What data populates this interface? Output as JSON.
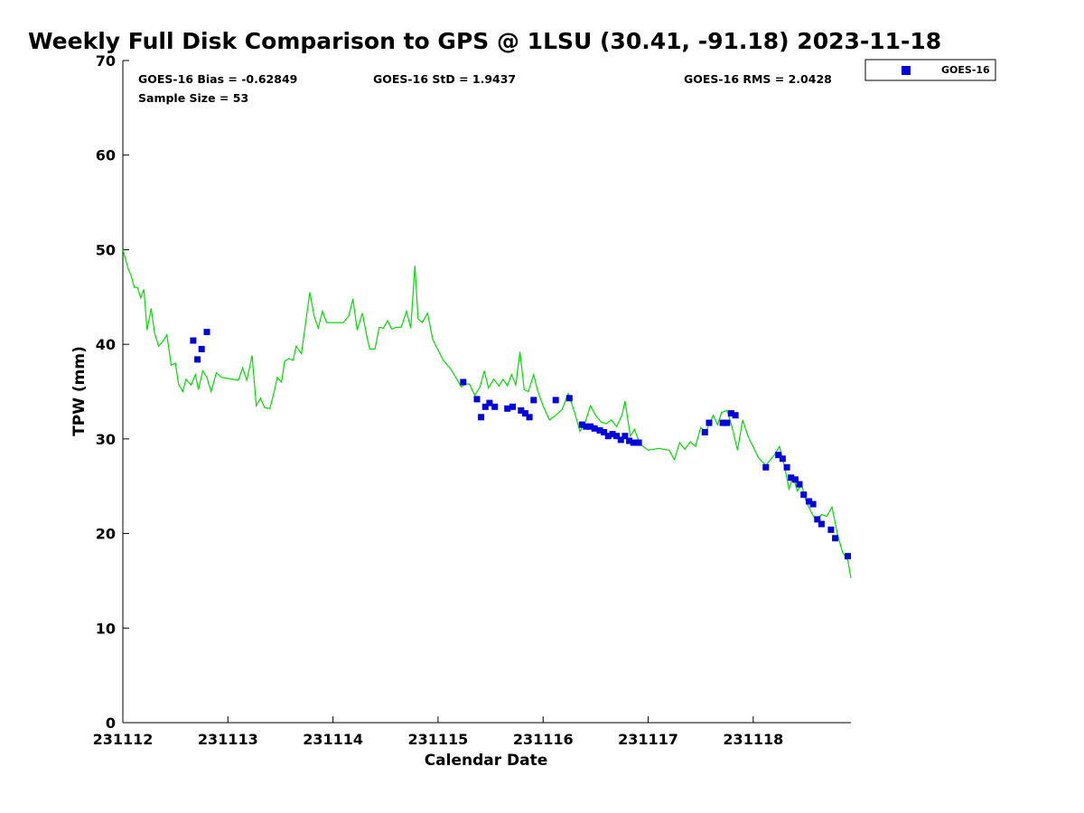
{
  "chart_data": {
    "type": "scatter",
    "title": "Weekly Full Disk Comparison to GPS @ 1LSU (30.41, -91.18) 2023-11-18",
    "xlabel": "Calendar Date",
    "ylabel": "TPW (mm)",
    "xlim": [
      231112,
      231118.93
    ],
    "ylim": [
      0,
      70
    ],
    "x_ticks": [
      {
        "value": 231112,
        "label": "231112"
      },
      {
        "value": 231113,
        "label": "231113"
      },
      {
        "value": 231114,
        "label": "231114"
      },
      {
        "value": 231115,
        "label": "231115"
      },
      {
        "value": 231116,
        "label": "231116"
      },
      {
        "value": 231117,
        "label": "231117"
      },
      {
        "value": 231118,
        "label": "231118"
      }
    ],
    "y_ticks": [
      {
        "value": 0,
        "label": "0"
      },
      {
        "value": 10,
        "label": "10"
      },
      {
        "value": 20,
        "label": "20"
      },
      {
        "value": 30,
        "label": "30"
      },
      {
        "value": 40,
        "label": "40"
      },
      {
        "value": 50,
        "label": "50"
      },
      {
        "value": 60,
        "label": "60"
      },
      {
        "value": 70,
        "label": "70"
      }
    ],
    "stats": {
      "bias": "GOES-16 Bias = -0.62849",
      "std": "GOES-16 StD = 1.9437",
      "rms": "GOES-16 RMS = 2.0428",
      "sample": "Sample Size = 53"
    },
    "legend_position": "top-right, outside plot",
    "grid": false,
    "series": [
      {
        "name": "GOES-16",
        "marker": "square",
        "color": "#0000dd",
        "points": [
          [
            231112.67,
            40.4
          ],
          [
            231112.71,
            38.4
          ],
          [
            231112.75,
            39.5
          ],
          [
            231112.8,
            41.3
          ],
          [
            231115.24,
            36.0
          ],
          [
            231115.37,
            34.2
          ],
          [
            231115.41,
            32.3
          ],
          [
            231115.45,
            33.4
          ],
          [
            231115.49,
            33.8
          ],
          [
            231115.54,
            33.4
          ],
          [
            231115.66,
            33.2
          ],
          [
            231115.71,
            33.4
          ],
          [
            231115.79,
            33.0
          ],
          [
            231115.83,
            32.7
          ],
          [
            231115.87,
            32.3
          ],
          [
            231115.91,
            34.1
          ],
          [
            231116.12,
            34.1
          ],
          [
            231116.25,
            34.3
          ],
          [
            231116.37,
            31.5
          ],
          [
            231116.41,
            31.3
          ],
          [
            231116.45,
            31.3
          ],
          [
            231116.49,
            31.1
          ],
          [
            231116.54,
            30.9
          ],
          [
            231116.58,
            30.7
          ],
          [
            231116.62,
            30.3
          ],
          [
            231116.66,
            30.5
          ],
          [
            231116.7,
            30.3
          ],
          [
            231116.74,
            29.9
          ],
          [
            231116.78,
            30.3
          ],
          [
            231116.82,
            29.8
          ],
          [
            231116.86,
            29.6
          ],
          [
            231116.91,
            29.6
          ],
          [
            231117.54,
            30.7
          ],
          [
            231117.58,
            31.7
          ],
          [
            231117.71,
            31.7
          ],
          [
            231117.75,
            31.7
          ],
          [
            231117.79,
            32.7
          ],
          [
            231117.83,
            32.5
          ],
          [
            231118.12,
            27.0
          ],
          [
            231118.24,
            28.3
          ],
          [
            231118.28,
            27.9
          ],
          [
            231118.32,
            27.0
          ],
          [
            231118.36,
            25.9
          ],
          [
            231118.4,
            25.7
          ],
          [
            231118.44,
            25.2
          ],
          [
            231118.48,
            24.1
          ],
          [
            231118.53,
            23.4
          ],
          [
            231118.57,
            23.1
          ],
          [
            231118.61,
            21.5
          ],
          [
            231118.65,
            21.0
          ],
          [
            231118.74,
            20.4
          ],
          [
            231118.78,
            19.5
          ],
          [
            231118.9,
            17.6
          ]
        ]
      },
      {
        "marker": "line",
        "color": "#00dd00",
        "points": [
          [
            231112.0,
            50.0
          ],
          [
            231112.05,
            48.0
          ],
          [
            231112.08,
            47.2
          ],
          [
            231112.11,
            46.0
          ],
          [
            231112.14,
            46.0
          ],
          [
            231112.17,
            44.9
          ],
          [
            231112.2,
            45.8
          ],
          [
            231112.23,
            41.5
          ],
          [
            231112.27,
            43.8
          ],
          [
            231112.3,
            41.3
          ],
          [
            231112.34,
            39.8
          ],
          [
            231112.38,
            40.3
          ],
          [
            231112.42,
            41.0
          ],
          [
            231112.46,
            37.8
          ],
          [
            231112.5,
            38.0
          ],
          [
            231112.53,
            35.8
          ],
          [
            231112.57,
            35.0
          ],
          [
            231112.6,
            36.3
          ],
          [
            231112.65,
            35.7
          ],
          [
            231112.69,
            36.8
          ],
          [
            231112.72,
            35.2
          ],
          [
            231112.76,
            37.2
          ],
          [
            231112.8,
            36.5
          ],
          [
            231112.84,
            35.0
          ],
          [
            231112.89,
            37.0
          ],
          [
            231112.94,
            36.5
          ],
          [
            231113.1,
            36.2
          ],
          [
            231113.14,
            37.5
          ],
          [
            231113.18,
            36.2
          ],
          [
            231113.23,
            38.8
          ],
          [
            231113.27,
            33.5
          ],
          [
            231113.31,
            34.3
          ],
          [
            231113.35,
            33.3
          ],
          [
            231113.4,
            33.2
          ],
          [
            231113.44,
            35.0
          ],
          [
            231113.47,
            36.5
          ],
          [
            231113.51,
            36.0
          ],
          [
            231113.54,
            38.2
          ],
          [
            231113.58,
            38.5
          ],
          [
            231113.62,
            38.3
          ],
          [
            231113.65,
            39.8
          ],
          [
            231113.7,
            39.0
          ],
          [
            231113.74,
            42.3
          ],
          [
            231113.78,
            45.5
          ],
          [
            231113.82,
            43.0
          ],
          [
            231113.86,
            41.7
          ],
          [
            231113.9,
            43.5
          ],
          [
            231113.94,
            42.3
          ],
          [
            231114.1,
            42.3
          ],
          [
            231114.15,
            43.0
          ],
          [
            231114.19,
            44.8
          ],
          [
            231114.23,
            41.5
          ],
          [
            231114.28,
            43.3
          ],
          [
            231114.32,
            41.0
          ],
          [
            231114.35,
            39.5
          ],
          [
            231114.4,
            39.5
          ],
          [
            231114.44,
            41.8
          ],
          [
            231114.48,
            41.7
          ],
          [
            231114.52,
            42.5
          ],
          [
            231114.56,
            41.6
          ],
          [
            231114.6,
            41.8
          ],
          [
            231114.65,
            41.8
          ],
          [
            231114.7,
            43.5
          ],
          [
            231114.74,
            41.7
          ],
          [
            231114.78,
            48.3
          ],
          [
            231114.81,
            42.7
          ],
          [
            231114.85,
            42.3
          ],
          [
            231114.9,
            43.3
          ],
          [
            231114.95,
            40.5
          ],
          [
            231115.05,
            38.3
          ],
          [
            231115.12,
            37.4
          ],
          [
            231115.17,
            36.5
          ],
          [
            231115.22,
            35.5
          ],
          [
            231115.26,
            35.8
          ],
          [
            231115.3,
            35.8
          ],
          [
            231115.35,
            34.6
          ],
          [
            231115.4,
            35.5
          ],
          [
            231115.44,
            37.2
          ],
          [
            231115.48,
            35.4
          ],
          [
            231115.53,
            36.3
          ],
          [
            231115.58,
            35.6
          ],
          [
            231115.62,
            36.3
          ],
          [
            231115.66,
            35.6
          ],
          [
            231115.7,
            36.8
          ],
          [
            231115.74,
            35.7
          ],
          [
            231115.78,
            39.2
          ],
          [
            231115.82,
            35.2
          ],
          [
            231115.86,
            35.0
          ],
          [
            231115.91,
            36.8
          ],
          [
            231115.95,
            35.0
          ],
          [
            231116.0,
            33.5
          ],
          [
            231116.06,
            32.0
          ],
          [
            231116.12,
            32.5
          ],
          [
            231116.18,
            33.1
          ],
          [
            231116.24,
            34.8
          ],
          [
            231116.3,
            32.8
          ],
          [
            231116.35,
            30.8
          ],
          [
            231116.4,
            31.7
          ],
          [
            231116.45,
            33.5
          ],
          [
            231116.5,
            32.5
          ],
          [
            231116.55,
            31.8
          ],
          [
            231116.6,
            31.6
          ],
          [
            231116.65,
            32.0
          ],
          [
            231116.7,
            31.3
          ],
          [
            231116.75,
            32.5
          ],
          [
            231116.78,
            34.0
          ],
          [
            231116.83,
            30.3
          ],
          [
            231116.87,
            31.0
          ],
          [
            231116.92,
            29.5
          ],
          [
            231117.0,
            28.8
          ],
          [
            231117.1,
            29.0
          ],
          [
            231117.2,
            28.8
          ],
          [
            231117.25,
            27.8
          ],
          [
            231117.3,
            29.6
          ],
          [
            231117.35,
            28.9
          ],
          [
            231117.4,
            29.7
          ],
          [
            231117.45,
            29.2
          ],
          [
            231117.5,
            31.2
          ],
          [
            231117.55,
            30.8
          ],
          [
            231117.62,
            32.5
          ],
          [
            231117.66,
            31.5
          ],
          [
            231117.7,
            32.8
          ],
          [
            231117.75,
            33.0
          ],
          [
            231117.8,
            31.2
          ],
          [
            231117.85,
            28.8
          ],
          [
            231117.9,
            32.0
          ],
          [
            231117.95,
            30.3
          ],
          [
            231118.05,
            28.0
          ],
          [
            231118.12,
            27.2
          ],
          [
            231118.2,
            28.3
          ],
          [
            231118.25,
            29.2
          ],
          [
            231118.3,
            27.0
          ],
          [
            231118.34,
            24.7
          ],
          [
            231118.38,
            26.0
          ],
          [
            231118.42,
            24.5
          ],
          [
            231118.46,
            25.2
          ],
          [
            231118.5,
            23.5
          ],
          [
            231118.55,
            22.3
          ],
          [
            231118.6,
            21.3
          ],
          [
            231118.65,
            22.0
          ],
          [
            231118.7,
            21.8
          ],
          [
            231118.75,
            22.8
          ],
          [
            231118.8,
            20.0
          ],
          [
            231118.85,
            18.0
          ],
          [
            231118.9,
            17.2
          ],
          [
            231118.93,
            15.3
          ]
        ]
      }
    ]
  }
}
